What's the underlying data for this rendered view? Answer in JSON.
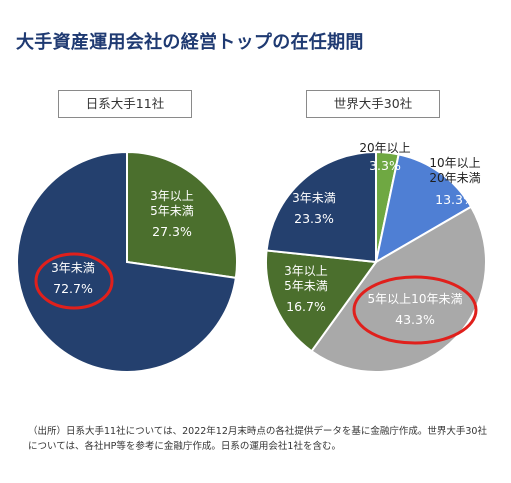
{
  "title": "大手資産運用会社の経営トップの在任期間",
  "source_note": "（出所）日系大手11社については、2022年12月末時点の各社提供データを基に金融庁作成。世界大手30社については、各社HP等を参考に金融庁作成。日系の運用会社1社を含む。",
  "colors": {
    "title": "#1f3a72",
    "navy": "#24406e",
    "green": "#4b6f2d",
    "lightgreen": "#6fa842",
    "blue": "#4f7fd4",
    "gray": "#a9a9a9",
    "highlight": "#e0201c"
  },
  "chart_data": [
    {
      "type": "pie",
      "title": "日系大手11社",
      "slices": [
        {
          "label_lines": [
            "3年以上",
            "5年未満"
          ],
          "value_text": "27.3%",
          "value": 27.3,
          "color": "#4b6f2d",
          "highlighted": false
        },
        {
          "label_lines": [
            "3年未満"
          ],
          "value_text": "72.7%",
          "value": 72.7,
          "color": "#24406e",
          "highlighted": true
        }
      ]
    },
    {
      "type": "pie",
      "title": "世界大手30社",
      "slices": [
        {
          "label_lines": [
            "20年以上"
          ],
          "value_text": "3.3%",
          "value": 3.3,
          "color": "#6fa842",
          "highlighted": false
        },
        {
          "label_lines": [
            "10年以上",
            "20年未満"
          ],
          "value_text": "13.3%",
          "value": 13.3,
          "color": "#4f7fd4",
          "highlighted": false
        },
        {
          "label_lines": [
            "5年以上10年未満"
          ],
          "value_text": "43.3%",
          "value": 43.3,
          "color": "#a9a9a9",
          "highlighted": true
        },
        {
          "label_lines": [
            "3年以上",
            "5年未満"
          ],
          "value_text": "16.7%",
          "value": 16.7,
          "color": "#4b6f2d",
          "highlighted": false
        },
        {
          "label_lines": [
            "3年未満"
          ],
          "value_text": "23.3%",
          "value": 23.3,
          "color": "#24406e",
          "highlighted": false
        }
      ]
    }
  ]
}
